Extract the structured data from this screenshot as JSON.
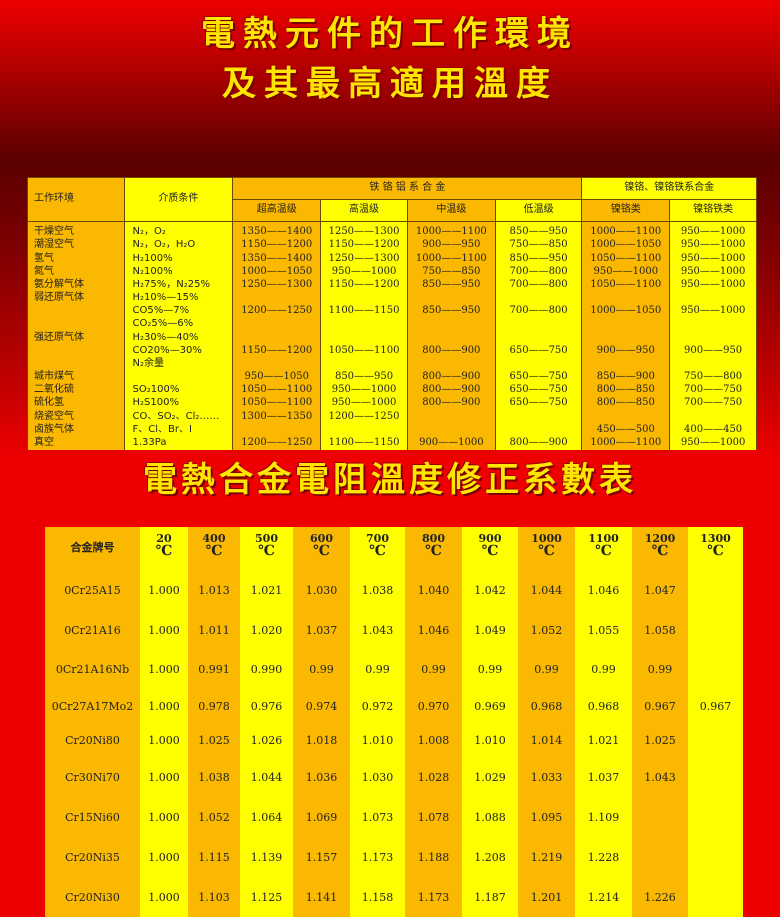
{
  "title_top": [
    "電熱元件的工作環境",
    "及其最高適用溫度"
  ],
  "title_bottom": "電熱合金電阻溫度修正系數表",
  "env_table": {
    "header_env": "工作环境",
    "header_medium": "介质条件",
    "group_fecral": "铁 铬 铝 系 合 金",
    "group_nicr": "镍铬、镍铬铁系合金",
    "subheaders": [
      "超高温级",
      "高温级",
      "中温级",
      "低温级",
      "镍铬类",
      "镍铬铁类"
    ],
    "rows": [
      [
        "干燥空气",
        "N₂，O₂",
        "1350——1400",
        "1250——1300",
        "1000——1100",
        "850——950",
        "1000——1100",
        "950——1000"
      ],
      [
        "潮湿空气",
        "N₂，O₂，H₂O",
        "1150——1200",
        "1150——1200",
        "900——950",
        "750——850",
        "1000——1050",
        "950——1000"
      ],
      [
        "氢气",
        "H₂100%",
        "1350——1400",
        "1250——1300",
        "1000——1100",
        "850——950",
        "1050——1100",
        "950——1000"
      ],
      [
        "氮气",
        "N₂100%",
        "1000——1050",
        "950——1000",
        "750——850",
        "700——800",
        "950——1000",
        "950——1000"
      ],
      [
        "氨分解气体",
        "H₂75%，N₂25%",
        "1250——1300",
        "1150——1200",
        "850——950",
        "700——800",
        "1050——1100",
        "950——1000"
      ],
      [
        "弱还原气体",
        "H₂10%—15%",
        "",
        "",
        "",
        "",
        "",
        ""
      ],
      [
        "",
        "CO5%—7%",
        "1200——1250",
        "1100——1150",
        "850——950",
        "700——800",
        "1000——1050",
        "950——1000"
      ],
      [
        "",
        "CO₂5%—6%",
        "",
        "",
        "",
        "",
        "",
        ""
      ],
      [
        "强还原气体",
        "H₂30%—40%",
        "",
        "",
        "",
        "",
        "",
        ""
      ],
      [
        "",
        "CO20%—30%",
        "1150——1200",
        "1050——1100",
        "800——900",
        "650——750",
        "900——950",
        "900——950"
      ],
      [
        "",
        "N₂余量",
        "",
        "",
        "",
        "",
        "",
        ""
      ],
      [
        "城市煤气",
        "",
        "950——1050",
        "850——950",
        "800——900",
        "650——750",
        "850——900",
        "750——800"
      ],
      [
        "二氧化硫",
        "SO₂100%",
        "1050——1100",
        "950——1000",
        "800——900",
        "650——750",
        "800——850",
        "700——750"
      ],
      [
        "硫化氢",
        "H₂S100%",
        "1050——1100",
        "950——1000",
        "800——900",
        "650——750",
        "800——850",
        "700——750"
      ],
      [
        "烧瓷空气",
        "CO、SO₂、Cl₂……",
        "1300——1350",
        "1200——1250",
        "",
        "",
        "",
        ""
      ],
      [
        "卤族气体",
        "F、Cl、Br、I",
        "",
        "",
        "",
        "",
        "450——500",
        "400——450"
      ],
      [
        "真空",
        "1.33Pa",
        "1200——1250",
        "1100——1150",
        "900——1000",
        "800——900",
        "1000——1100",
        "950——1000"
      ]
    ]
  },
  "coef_table": {
    "header_name": "合金牌号",
    "unit": "℃",
    "temps": [
      "20",
      "400",
      "500",
      "600",
      "700",
      "800",
      "900",
      "1000",
      "1100",
      "1200",
      "1300"
    ],
    "rows": [
      {
        "alloy": "0Cr25A15",
        "values": [
          "1.000",
          "1.013",
          "1.021",
          "1.030",
          "1.038",
          "1.040",
          "1.042",
          "1.044",
          "1.046",
          "1.047",
          ""
        ]
      },
      {
        "alloy": "0Cr21A16",
        "values": [
          "1.000",
          "1.011",
          "1.020",
          "1.037",
          "1.043",
          "1.046",
          "1.049",
          "1.052",
          "1.055",
          "1.058",
          ""
        ]
      },
      {
        "alloy": "0Cr21A16Nb",
        "values": [
          "1.000",
          "0.991",
          "0.990",
          "0.99",
          "0.99",
          "0.99",
          "0.99",
          "0.99",
          "0.99",
          "0.99",
          ""
        ]
      },
      {
        "alloy": "0Cr27A17Mo2",
        "values": [
          "1.000",
          "0.978",
          "0.976",
          "0.974",
          "0.972",
          "0.970",
          "0.969",
          "0.968",
          "0.968",
          "0.967",
          "0.967"
        ]
      },
      {
        "alloy": "Cr20Ni80",
        "values": [
          "1.000",
          "1.025",
          "1.026",
          "1.018",
          "1.010",
          "1.008",
          "1.010",
          "1.014",
          "1.021",
          "1.025",
          ""
        ]
      },
      {
        "alloy": "Cr30Ni70",
        "values": [
          "1.000",
          "1.038",
          "1.044",
          "1.036",
          "1.030",
          "1.028",
          "1.029",
          "1.033",
          "1.037",
          "1.043",
          ""
        ]
      },
      {
        "alloy": "Cr15Ni60",
        "values": [
          "1.000",
          "1.052",
          "1.064",
          "1.069",
          "1.073",
          "1.078",
          "1.088",
          "1.095",
          "1.109",
          "",
          ""
        ]
      },
      {
        "alloy": "Cr20Ni35",
        "values": [
          "1.000",
          "1.115",
          "1.139",
          "1.157",
          "1.173",
          "1.188",
          "1.208",
          "1.219",
          "1.228",
          "",
          ""
        ]
      },
      {
        "alloy": "Cr20Ni30",
        "values": [
          "1.000",
          "1.103",
          "1.125",
          "1.141",
          "1.158",
          "1.173",
          "1.187",
          "1.201",
          "1.214",
          "1.226",
          ""
        ]
      }
    ]
  },
  "colors": {
    "orange": "#fbb800",
    "yellow": "#ffff00",
    "title": "#ffe600",
    "background": "#ee0000"
  }
}
